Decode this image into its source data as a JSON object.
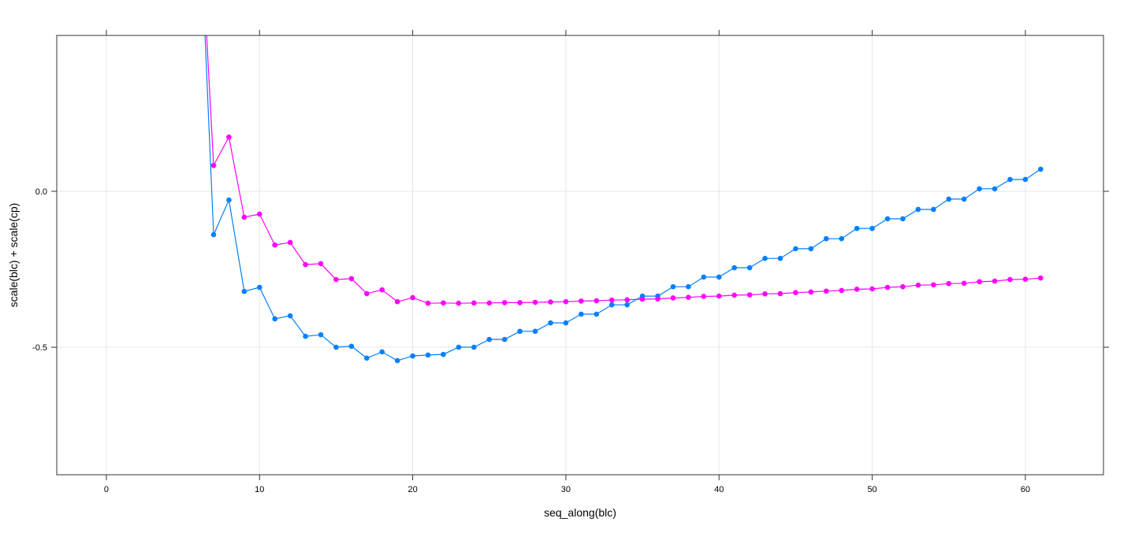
{
  "chart_data": {
    "type": "line",
    "title": "",
    "xlabel": "seq_along(blc)",
    "ylabel": "scale(blc) + scale(cp)",
    "xlim": [
      -3.24,
      65.1
    ],
    "ylim": [
      -0.909,
      0.5
    ],
    "grid": true,
    "legend": "none",
    "x_ticks": [
      0,
      10,
      20,
      30,
      40,
      50,
      60
    ],
    "x_tick_labels": [
      "0",
      "10",
      "20",
      "30",
      "40",
      "50",
      "60"
    ],
    "y_ticks": [
      0.0,
      -0.5
    ],
    "y_tick_labels": [
      "0.0",
      "-0.5"
    ],
    "x": [
      6,
      7,
      8,
      9,
      10,
      11,
      12,
      13,
      14,
      15,
      16,
      17,
      18,
      19,
      20,
      21,
      22,
      23,
      24,
      25,
      26,
      27,
      28,
      29,
      30,
      31,
      32,
      33,
      34,
      35,
      36,
      37,
      38,
      39,
      40,
      41,
      42,
      43,
      44,
      45,
      46,
      47,
      48,
      49,
      50,
      51,
      52,
      53,
      54,
      55,
      56,
      57,
      58,
      59,
      60,
      61
    ],
    "series": [
      {
        "name": "blue",
        "color": "#0080ff",
        "values": [
          1.0,
          -0.139,
          -0.028,
          -0.321,
          -0.308,
          -0.409,
          -0.399,
          -0.465,
          -0.46,
          -0.5,
          -0.497,
          -0.535,
          -0.515,
          -0.543,
          -0.528,
          -0.525,
          -0.523,
          -0.5,
          -0.5,
          -0.475,
          -0.475,
          -0.449,
          -0.449,
          -0.422,
          -0.422,
          -0.394,
          -0.394,
          -0.364,
          -0.364,
          -0.336,
          -0.336,
          -0.306,
          -0.306,
          -0.275,
          -0.275,
          -0.245,
          -0.245,
          -0.215,
          -0.215,
          -0.184,
          -0.184,
          -0.152,
          -0.152,
          -0.119,
          -0.119,
          -0.088,
          -0.088,
          -0.058,
          -0.058,
          -0.025,
          -0.025,
          0.008,
          0.008,
          0.038,
          0.038,
          0.071
        ]
      },
      {
        "name": "magenta",
        "color": "#ff00ff",
        "values": [
          1.0,
          0.083,
          0.174,
          -0.083,
          -0.073,
          -0.172,
          -0.164,
          -0.235,
          -0.232,
          -0.283,
          -0.28,
          -0.328,
          -0.316,
          -0.354,
          -0.341,
          -0.359,
          -0.358,
          -0.359,
          -0.358,
          -0.358,
          -0.357,
          -0.357,
          -0.356,
          -0.355,
          -0.354,
          -0.352,
          -0.351,
          -0.349,
          -0.348,
          -0.346,
          -0.345,
          -0.342,
          -0.34,
          -0.337,
          -0.336,
          -0.333,
          -0.332,
          -0.329,
          -0.328,
          -0.325,
          -0.323,
          -0.32,
          -0.318,
          -0.314,
          -0.313,
          -0.308,
          -0.306,
          -0.301,
          -0.3,
          -0.296,
          -0.295,
          -0.29,
          -0.288,
          -0.283,
          -0.282,
          -0.278
        ]
      }
    ]
  }
}
